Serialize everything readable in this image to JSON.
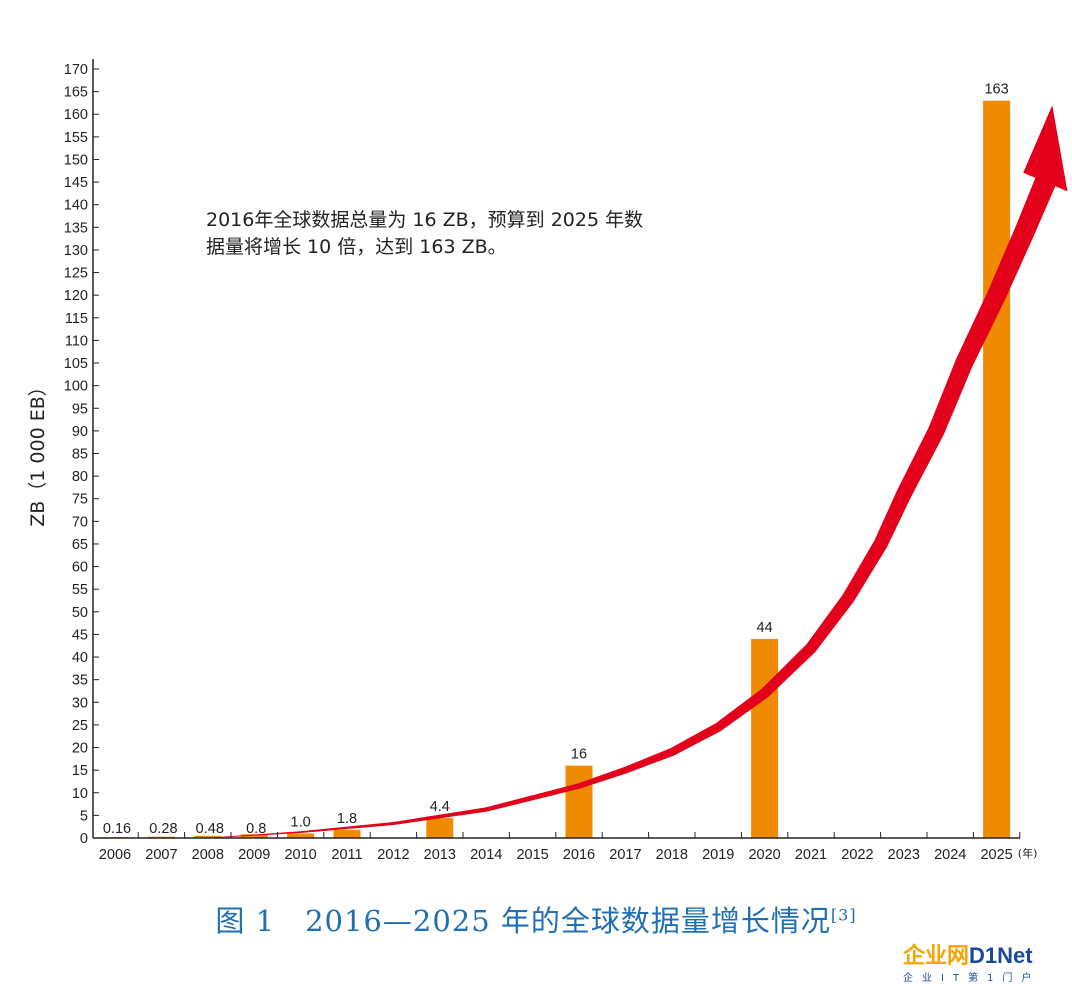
{
  "chart_data": {
    "type": "bar",
    "ylabel": "ZB（1 000 EB）",
    "x_unit": "(年)",
    "ylim": [
      0,
      170
    ],
    "ytick_step": 5,
    "categories": [
      "2006",
      "2007",
      "2008",
      "2009",
      "2010",
      "2011",
      "2012",
      "2013",
      "2014",
      "2015",
      "2016",
      "2017",
      "2018",
      "2019",
      "2020",
      "2021",
      "2022",
      "2023",
      "2024",
      "2025"
    ],
    "values": [
      0.16,
      0.28,
      0.48,
      0.8,
      1.0,
      1.8,
      null,
      4.4,
      null,
      null,
      16,
      null,
      null,
      null,
      44,
      null,
      null,
      null,
      null,
      163
    ],
    "value_labels": [
      "0.16",
      "0.28",
      "0.48",
      "0.8",
      "1.0",
      "1.8",
      "",
      "4.4",
      "",
      "",
      "16",
      "",
      "",
      "",
      "44",
      "",
      "",
      "",
      "",
      "163"
    ],
    "annotation": [
      "2016年全球数据总量为 16 ZB，预算到 2025 年数",
      "据量将增长 10 倍，达到 163 ZB。"
    ],
    "bar_color": "#f08a00",
    "arrow_color": "#e3001b"
  },
  "caption": {
    "text": "图 1　2016—2025 年的全球数据量增长情况",
    "ref": "[3]"
  },
  "logo": {
    "cn": "企业网",
    "en": "D1Net",
    "sub": "企业IT第1门户"
  }
}
